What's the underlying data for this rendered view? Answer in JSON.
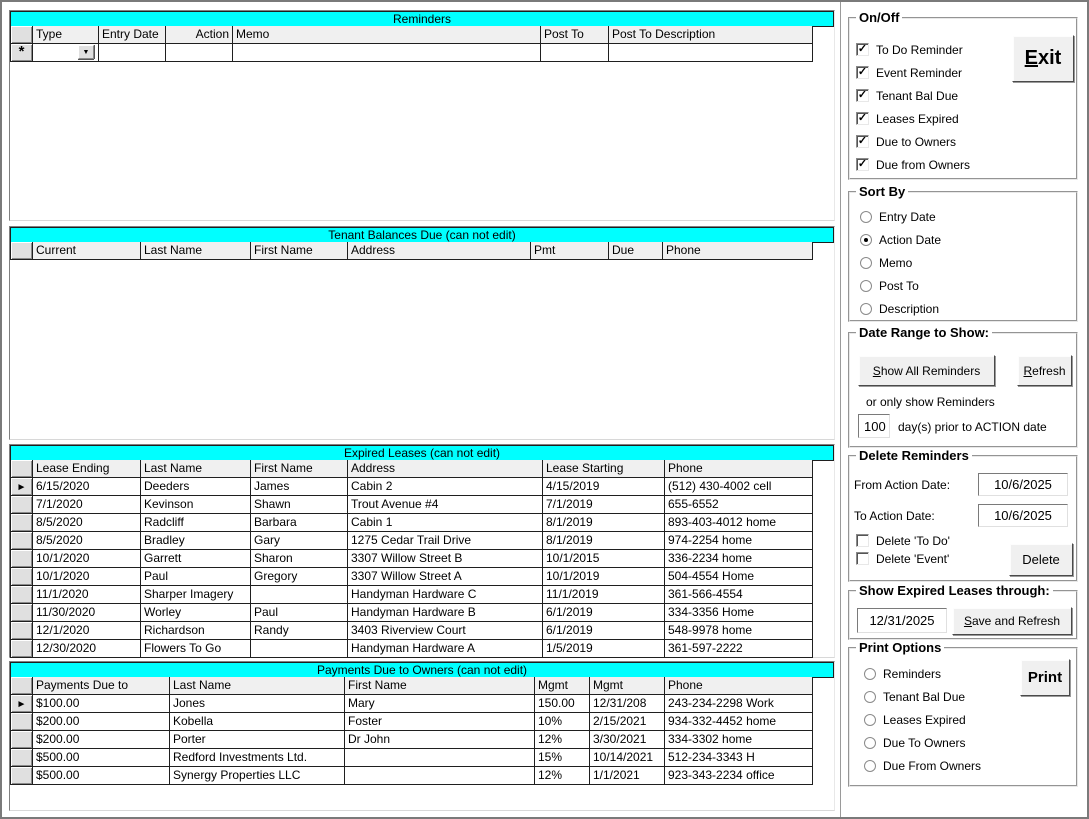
{
  "markers": {
    "selected_row": "►",
    "new_row": "*",
    "dropdown": "▼",
    "check": "✓"
  },
  "colors": {
    "grid_title_bg": "#00ffff",
    "header_cell_bg": "#f0f0f0",
    "button_face": "#f0f0f0"
  },
  "grids": {
    "reminders": {
      "title": "Reminders",
      "columns": [
        "",
        "Type",
        "Entry Date",
        "Action",
        "Memo",
        "Post To",
        "Post To Description"
      ],
      "rows": [],
      "has_new_row": true
    },
    "tenant_balances": {
      "title": "Tenant Balances Due (can not edit)",
      "columns": [
        "",
        "Current",
        "Last Name",
        "First Name",
        "Address",
        "Pmt",
        "Due",
        "Phone"
      ],
      "rows": []
    },
    "expired_leases": {
      "title": "Expired Leases (can not edit)",
      "columns": [
        "",
        "Lease Ending",
        "Last Name",
        "First Name",
        "Address",
        "Lease Starting",
        "Phone"
      ],
      "selected_row": 0,
      "rows": [
        [
          "6/15/2020",
          "Deeders",
          "James",
          "Cabin 2",
          "4/15/2019",
          "(512) 430-4002 cell"
        ],
        [
          "7/1/2020",
          "Kevinson",
          "Shawn",
          "Trout Avenue #4",
          "7/1/2019",
          "655-6552"
        ],
        [
          "8/5/2020",
          "Radcliff",
          "Barbara",
          "Cabin 1",
          "8/1/2019",
          "893-403-4012 home"
        ],
        [
          "8/5/2020",
          "Bradley",
          "Gary",
          "1275 Cedar Trail Drive",
          "8/1/2019",
          "974-2254 home"
        ],
        [
          "10/1/2020",
          "Garrett",
          "Sharon",
          "3307 Willow Street B",
          "10/1/2015",
          "336-2234 home"
        ],
        [
          "10/1/2020",
          "Paul",
          "Gregory",
          "3307 Willow Street A",
          "10/1/2019",
          "504-4554 Home"
        ],
        [
          "11/1/2020",
          "Sharper Imagery",
          "",
          "Handyman Hardware C",
          "11/1/2019",
          "361-566-4554"
        ],
        [
          "11/30/2020",
          "Worley",
          "Paul",
          "Handyman Hardware B",
          "6/1/2019",
          "334-3356 Home"
        ],
        [
          "12/1/2020",
          "Richardson",
          "Randy",
          "3403 Riverview Court",
          "6/1/2019",
          "548-9978 home"
        ],
        [
          "12/30/2020",
          "Flowers To Go",
          "",
          "Handyman Hardware A",
          "1/5/2019",
          "361-597-2222"
        ]
      ]
    },
    "payments_due": {
      "title": "Payments Due to Owners (can not edit)",
      "columns": [
        "",
        "Payments Due to",
        "Last Name",
        "First Name",
        "Mgmt",
        "Mgmt",
        "Phone"
      ],
      "selected_row": 0,
      "rows": [
        [
          "$100.00",
          "Jones",
          "Mary",
          "150.00",
          "12/31/208",
          "243-234-2298 Work"
        ],
        [
          "$200.00",
          "Kobella",
          "Foster",
          "10%",
          "2/15/2021",
          "934-332-4452 home"
        ],
        [
          "$200.00",
          "Porter",
          "Dr John",
          "12%",
          "3/30/2021",
          "334-3302 home"
        ],
        [
          "$500.00",
          "Redford Investments Ltd.",
          "",
          "15%",
          "10/14/2021",
          "512-234-3343 H"
        ],
        [
          "$500.00",
          "Synergy Properties LLC",
          "",
          "12%",
          "1/1/2021",
          "923-343-2234 office"
        ]
      ]
    }
  },
  "panel": {
    "on_off": {
      "title": "On/Off",
      "checkboxes": [
        {
          "label": "To Do Reminder",
          "checked": true
        },
        {
          "label": "Event Reminder",
          "checked": true
        },
        {
          "label": "Tenant Bal Due",
          "checked": true
        },
        {
          "label": "Leases Expired",
          "checked": true
        },
        {
          "label": "Due to Owners",
          "checked": true
        },
        {
          "label": "Due from Owners",
          "checked": true
        }
      ],
      "exit_button": "Exit"
    },
    "sort_by": {
      "title": "Sort By",
      "options": [
        {
          "label": "Entry Date",
          "selected": false
        },
        {
          "label": "Action Date",
          "selected": true
        },
        {
          "label": "Memo",
          "selected": false
        },
        {
          "label": "Post To",
          "selected": false
        },
        {
          "label": "Description",
          "selected": false
        }
      ]
    },
    "date_range": {
      "title": "Date Range to Show:",
      "show_all_button": "Show All Reminders",
      "refresh_button": "Refresh",
      "hint": "or only show Reminders",
      "days_value": "100",
      "days_suffix": "day(s) prior to ACTION date"
    },
    "delete_reminders": {
      "title": "Delete Reminders",
      "from_label": "From Action Date:",
      "from_value": "10/6/2025",
      "to_label": "To Action Date:",
      "to_value": "10/6/2025",
      "checkboxes": [
        {
          "label": "Delete 'To Do'",
          "checked": false
        },
        {
          "label": "Delete 'Event'",
          "checked": false
        }
      ],
      "delete_button": "Delete"
    },
    "expired_through": {
      "title": "Show Expired Leases through:",
      "date_value": "12/31/2025",
      "save_button": "Save and Refresh"
    },
    "print_options": {
      "title": "Print Options",
      "options": [
        {
          "label": "Reminders",
          "selected": false
        },
        {
          "label": "Tenant Bal Due",
          "selected": false
        },
        {
          "label": "Leases Expired",
          "selected": false
        },
        {
          "label": "Due To Owners",
          "selected": false
        },
        {
          "label": "Due From Owners",
          "selected": false
        }
      ],
      "print_button": "Print"
    }
  }
}
